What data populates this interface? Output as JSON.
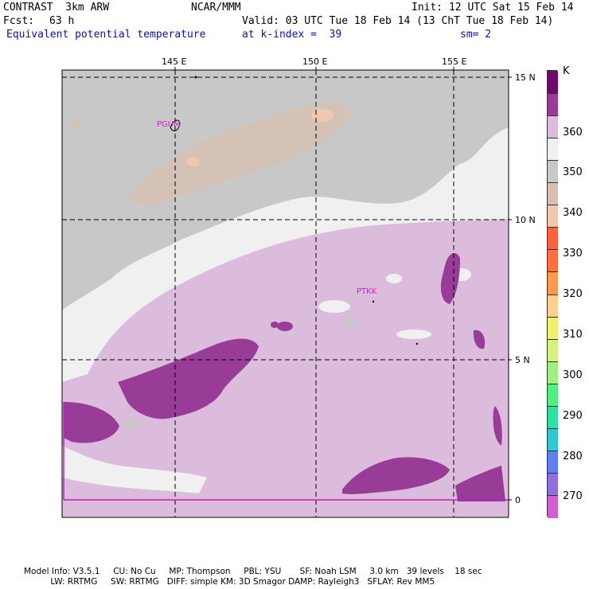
{
  "header": {
    "model": "CONTRAST  3km ARW",
    "center": "NCAR/MMM",
    "init": "Init: 12 UTC Sat 15 Feb 14",
    "fcst_label": "Fcst:",
    "fcst_value": "63 h",
    "valid": "Valid: 03 UTC Tue 18 Feb 14 (13 ChT Tue 18 Feb 14)",
    "field": "Equivalent potential temperature",
    "level": "at k-index =  39",
    "smoothing": "sm= 2"
  },
  "map": {
    "lon_labels": [
      "145 E",
      "150 E",
      "155 E"
    ],
    "lat_labels": [
      "15 N",
      "10 N",
      "5 N",
      "0"
    ],
    "stations": [
      "PGUM",
      "PTKK"
    ]
  },
  "legend": {
    "unit": "K",
    "labels": [
      "360",
      "350",
      "340",
      "330",
      "320",
      "310",
      "300",
      "290",
      "280",
      "270"
    ],
    "colors": [
      "#6e0a6e",
      "#983c98",
      "#dcbcdc",
      "#f0f0f0",
      "#c8c8c8",
      "#d6c0b0",
      "#f0c8b0",
      "#fe6040",
      "#ff7040",
      "#ff9850",
      "#ffd090",
      "#f0f070",
      "#d8f080",
      "#a0f080",
      "#50f080",
      "#30e0a0",
      "#30c8d0",
      "#6080f0",
      "#9070e0",
      "#d060d0"
    ]
  },
  "footer": {
    "line1": "Model Info: V3.5.1     CU: No Cu     MP: Thompson     PBL: YSU       SF: Noah LSM     3.0 km   39 levels    18 sec",
    "line2": "          LW: RRTMG     SW: RRTMG   DIFF: simple KM: 3D Smagor DAMP: Rayleigh3   SFLAY: Rev MM5"
  }
}
